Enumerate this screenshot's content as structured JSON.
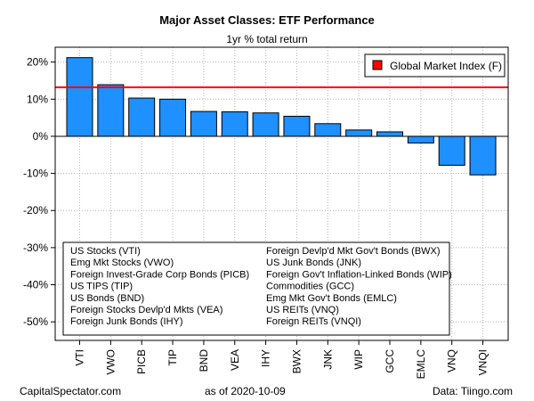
{
  "chart_data": {
    "type": "bar",
    "title": "Major Asset Classes: ETF Performance",
    "subtitle": "1yr % total return",
    "categories": [
      "VTI",
      "VWO",
      "PICB",
      "TIP",
      "BND",
      "VEA",
      "IHY",
      "BWX",
      "JNK",
      "WIP",
      "GCC",
      "EMLC",
      "VNQ",
      "VNQI"
    ],
    "values": [
      21.2,
      13.9,
      10.3,
      10.0,
      6.7,
      6.6,
      6.3,
      5.4,
      3.4,
      1.7,
      1.2,
      -1.8,
      -7.8,
      -10.4
    ],
    "reference_line": {
      "label": "Global Market Index (F)",
      "value": 13.2,
      "color": "#ff0000"
    },
    "bar_color": "#1e90ff",
    "ylim": [
      -55,
      24
    ],
    "yticks": [
      20,
      10,
      0,
      -10,
      -20,
      -30,
      -40,
      -50
    ],
    "ytick_labels": [
      "20%",
      "10%",
      "0%",
      "-10%",
      "-20%",
      "-30%",
      "-40%",
      "-50%"
    ],
    "grid": true,
    "legend_position": "top-right",
    "ticker_key": [
      "US Stocks (VTI)",
      "Emg Mkt Stocks (VWO)",
      "Foreign Invest-Grade Corp Bonds (PICB)",
      "US TIPS (TIP)",
      "US Bonds (BND)",
      "Foreign Stocks Devlp'd Mkts (VEA)",
      "Foreign Junk Bonds (IHY)",
      "Foreign Devlp'd Mkt Gov't Bonds (BWX)",
      "US Junk Bonds (JNK)",
      "Foreign Gov't Inflation-Linked Bonds (WIP)",
      "Commodities (GCC)",
      "Emg Mkt Gov't Bonds (EMLC)",
      "US REITs (VNQ)",
      "Foreign REITs (VNQI)"
    ]
  },
  "footer": {
    "left": "CapitalSpectator.com",
    "center": "as of  2020-10-09",
    "right": "Data: Tiingo.com"
  }
}
